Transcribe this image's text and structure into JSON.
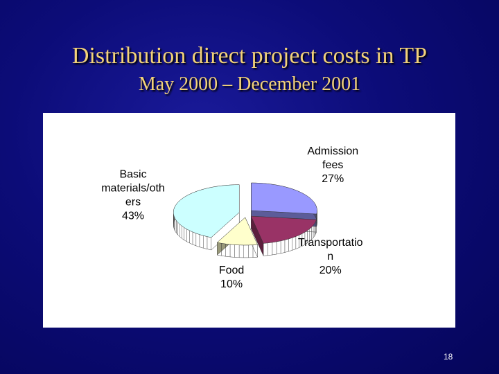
{
  "title": "Distribution direct project costs in TP",
  "subtitle": "May 2000 – December 2001",
  "slide_number": "18",
  "chart_data": {
    "type": "pie3d",
    "categories": [
      "Admission fees",
      "Transportation",
      "Food",
      "Basic materials/others"
    ],
    "values": [
      27,
      20,
      10,
      43
    ],
    "value_labels": [
      "27%",
      "20%",
      "10%",
      "43%"
    ],
    "colors": [
      "#9999ff",
      "#993366",
      "#ffffcc",
      "#ccffff"
    ]
  }
}
